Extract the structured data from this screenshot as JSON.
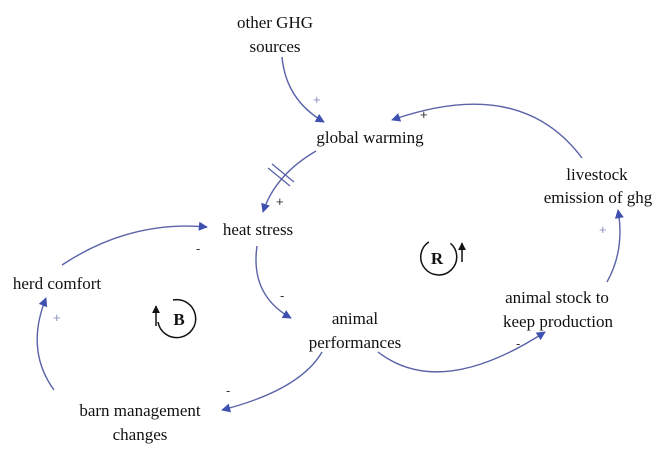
{
  "diagram": {
    "type": "causal-loop",
    "link_color": "#4b5bb0",
    "nodes": {
      "other_ghg": [
        "other GHG",
        "sources"
      ],
      "global_warming": "global warming",
      "livestock_emission": [
        "livestock",
        "emission of ghg"
      ],
      "heat_stress": "heat stress",
      "herd_comfort": "herd comfort",
      "animal_performances": [
        "animal",
        "performances"
      ],
      "animal_stock": [
        "animal stock to",
        "keep production"
      ],
      "barn_management": [
        "barn management",
        "changes"
      ]
    },
    "links": [
      {
        "from": "other GHG sources",
        "to": "global warming",
        "polarity": "+"
      },
      {
        "from": "livestock emission of ghg",
        "to": "global warming",
        "polarity": "+"
      },
      {
        "from": "global warming",
        "to": "heat stress",
        "polarity": "+",
        "delay": true
      },
      {
        "from": "herd comfort",
        "to": "heat stress",
        "polarity": "-"
      },
      {
        "from": "heat stress",
        "to": "animal performances",
        "polarity": "-"
      },
      {
        "from": "animal performances",
        "to": "barn management changes",
        "polarity": "-"
      },
      {
        "from": "barn management changes",
        "to": "herd comfort",
        "polarity": "+"
      },
      {
        "from": "animal performances",
        "to": "animal stock to keep production",
        "polarity": "-"
      },
      {
        "from": "animal stock to keep production",
        "to": "livestock emission of ghg",
        "polarity": "+"
      }
    ],
    "loops": {
      "reinforcing": "R",
      "balancing": "B"
    }
  }
}
